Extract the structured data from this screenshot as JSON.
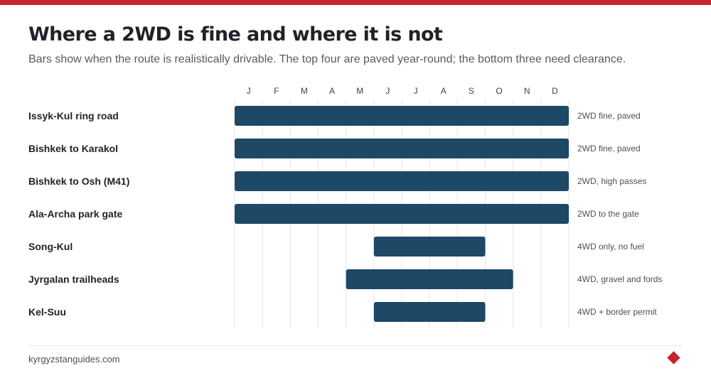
{
  "brand": {
    "accent": "#c8242f"
  },
  "header": {
    "title": "Where a 2WD is fine and where it is not",
    "subtitle": "Bars show when the route is realistically drivable. The top four are paved year-round; the bottom three need clearance."
  },
  "footer": {
    "site": "kyrgyzstanguides.com"
  },
  "chart_data": {
    "type": "bar",
    "orientation": "horizontal-timeline",
    "grid": true,
    "months": [
      "J",
      "F",
      "M",
      "A",
      "M",
      "J",
      "J",
      "A",
      "S",
      "O",
      "N",
      "D"
    ],
    "bar_color": "#1d4866",
    "rows": [
      {
        "label": "Issyk-Kul ring road",
        "start_month": 1,
        "end_month": 12,
        "note": "2WD fine, paved"
      },
      {
        "label": "Bishkek to Karakol",
        "start_month": 1,
        "end_month": 12,
        "note": "2WD fine, paved"
      },
      {
        "label": "Bishkek to Osh (M41)",
        "start_month": 1,
        "end_month": 12,
        "note": "2WD, high passes"
      },
      {
        "label": "Ala-Archa park gate",
        "start_month": 1,
        "end_month": 12,
        "note": "2WD to the gate"
      },
      {
        "label": "Song-Kul",
        "start_month": 6,
        "end_month": 9,
        "note": "4WD only, no fuel"
      },
      {
        "label": "Jyrgalan trailheads",
        "start_month": 5,
        "end_month": 10,
        "note": "4WD, gravel and fords"
      },
      {
        "label": "Kel-Suu",
        "start_month": 6,
        "end_month": 9,
        "note": "4WD + border permit"
      }
    ]
  }
}
